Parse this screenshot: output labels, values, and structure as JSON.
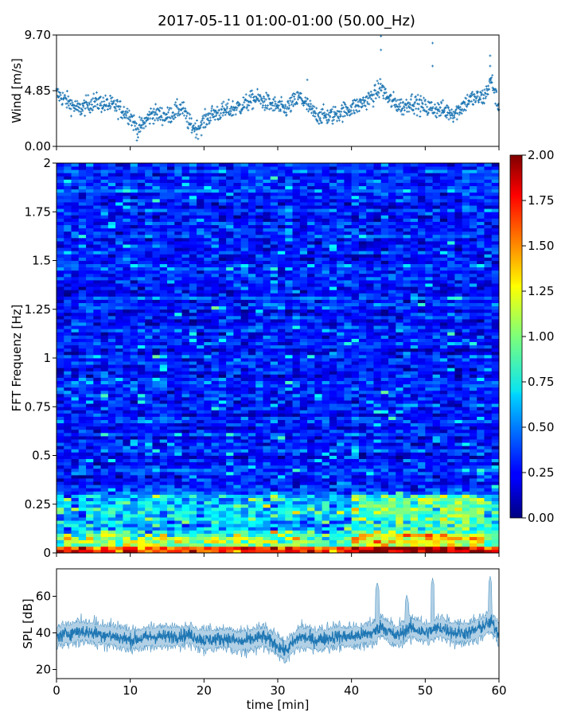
{
  "title": "2017-05-11 01:00-01:00 (50.00_Hz)",
  "chart_data": [
    {
      "type": "scatter",
      "panel": "wind",
      "ylabel": "Wind [m/s]",
      "xlim": [
        0,
        60
      ],
      "ylim": [
        0,
        9.7
      ],
      "yticks": [
        0,
        4.85,
        9.7
      ],
      "ytick_labels": [
        "0.00",
        "4.85",
        "9.70"
      ],
      "marker": "+",
      "color": "#1f77b4",
      "sample_interval_min": 0.05,
      "profile_t": [
        0,
        3,
        5,
        8,
        10,
        11,
        13,
        15,
        17,
        18,
        19,
        21,
        23,
        25,
        27,
        29,
        31,
        33,
        35,
        37,
        39,
        41,
        43,
        44,
        45,
        47,
        48,
        50,
        52,
        54,
        56,
        58,
        59,
        60
      ],
      "profile_v": [
        4.6,
        3.2,
        3.9,
        3.5,
        2.7,
        1.4,
        2.9,
        2.6,
        3.4,
        2.0,
        1.5,
        2.8,
        3.1,
        3.5,
        4.2,
        3.7,
        3.2,
        4.3,
        2.8,
        2.6,
        3.1,
        3.6,
        4.4,
        5.2,
        4.1,
        3.4,
        3.9,
        3.4,
        3.2,
        2.9,
        4.1,
        4.3,
        5.8,
        3.2
      ],
      "outliers": [
        {
          "t": 44.0,
          "v": 9.6
        },
        {
          "t": 44.0,
          "v": 8.4
        },
        {
          "t": 51.0,
          "v": 9.0
        },
        {
          "t": 51.0,
          "v": 7.0
        },
        {
          "t": 58.8,
          "v": 7.9
        },
        {
          "t": 58.8,
          "v": 7.0
        },
        {
          "t": 34.0,
          "v": 5.8
        }
      ]
    },
    {
      "type": "heatmap",
      "panel": "spectrogram",
      "ylabel": "FFT Frequenz [Hz]",
      "xlim": [
        0,
        60
      ],
      "ylim": [
        0,
        2
      ],
      "yticks": [
        0,
        0.25,
        0.5,
        0.75,
        1,
        1.25,
        1.5,
        1.75,
        2
      ],
      "ytick_labels": [
        "0",
        "0.25",
        "0.5",
        "0.75",
        "1",
        "1.25",
        "1.5",
        "1.75",
        "2"
      ],
      "colormap": "jet",
      "colorbar": {
        "range": [
          0,
          2
        ],
        "ticks": [
          "0.00",
          "0.25",
          "0.50",
          "0.75",
          "1.00",
          "1.25",
          "1.50",
          "1.75",
          "2.00"
        ]
      },
      "time_bins": 60,
      "freq_bins": 120,
      "base_level": 0.3,
      "low_freq_boost": [
        {
          "f_max": 0.03,
          "level": 1.7
        },
        {
          "f_max": 0.1,
          "level": 1.0
        },
        {
          "f_max": 0.3,
          "level": 0.65
        }
      ]
    },
    {
      "type": "area",
      "panel": "spl",
      "ylabel": "SPL [dB]",
      "xlabel": "time [min]",
      "xlim": [
        0,
        60
      ],
      "ylim": [
        15,
        75
      ],
      "yticks": [
        20,
        40,
        60
      ],
      "ytick_labels": [
        "20",
        "40",
        "60"
      ],
      "xticks": [
        0,
        10,
        20,
        30,
        40,
        50,
        60
      ],
      "xtick_labels": [
        "0",
        "10",
        "20",
        "30",
        "40",
        "50",
        "60"
      ],
      "color": "#1f77b4",
      "profile_t": [
        0,
        3,
        5,
        8,
        10,
        13,
        15,
        18,
        20,
        23,
        25,
        28,
        30,
        31,
        33,
        35,
        38,
        40,
        43,
        44,
        46,
        48,
        50,
        52,
        54,
        56,
        58,
        59,
        60
      ],
      "profile_mean": [
        38,
        41,
        40,
        38,
        36,
        38,
        38,
        39,
        36,
        37,
        35,
        38,
        33,
        30,
        38,
        36,
        38,
        38,
        40,
        44,
        38,
        43,
        40,
        43,
        40,
        40,
        44,
        46,
        39
      ],
      "spikes": [
        {
          "t": 43.5,
          "max": 68
        },
        {
          "t": 51.0,
          "max": 70
        },
        {
          "t": 58.8,
          "max": 71
        },
        {
          "t": 47.5,
          "max": 61
        }
      ]
    }
  ]
}
